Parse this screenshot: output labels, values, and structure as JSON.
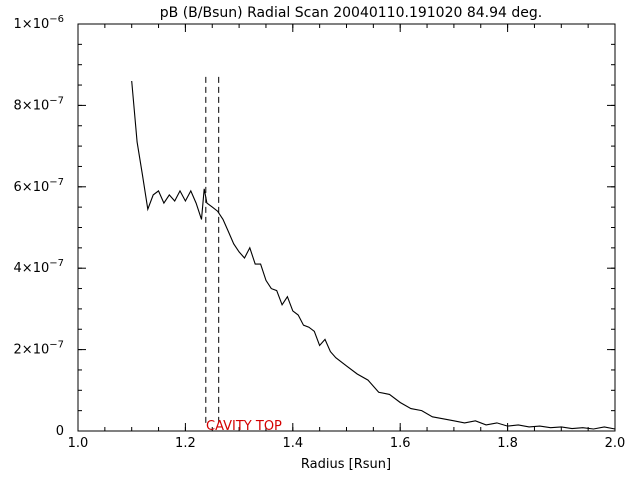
{
  "chart_data": {
    "type": "line",
    "title": "pB (B/Bsun) Radial Scan 20040110.191020 84.94 deg.",
    "xlabel": "Radius [Rsun]",
    "ylabel": "",
    "xlim": [
      1.0,
      2.0
    ],
    "ylim": [
      0,
      1e-06
    ],
    "x_ticks": [
      1.0,
      1.2,
      1.4,
      1.6,
      1.8,
      2.0
    ],
    "x_tick_labels": [
      "1.0",
      "1.2",
      "1.4",
      "1.6",
      "1.8",
      "2.0"
    ],
    "y_ticks": [
      0,
      2e-07,
      4e-07,
      6e-07,
      8e-07,
      1e-06
    ],
    "y_tick_labels": [
      {
        "mant": "0",
        "exp": ""
      },
      {
        "mant": "2×10",
        "exp": "−7"
      },
      {
        "mant": "4×10",
        "exp": "−7"
      },
      {
        "mant": "6×10",
        "exp": "−7"
      },
      {
        "mant": "8×10",
        "exp": "−7"
      },
      {
        "mant": "1×10",
        "exp": "−6"
      }
    ],
    "series": [
      {
        "x": [
          1.1,
          1.11,
          1.12,
          1.13,
          1.14,
          1.15,
          1.16,
          1.17,
          1.18,
          1.19,
          1.2,
          1.21,
          1.22,
          1.23,
          1.235,
          1.24,
          1.25,
          1.26,
          1.27,
          1.28,
          1.29,
          1.3,
          1.31,
          1.32,
          1.33,
          1.34,
          1.35,
          1.36,
          1.37,
          1.38,
          1.39,
          1.4,
          1.41,
          1.42,
          1.43,
          1.44,
          1.45,
          1.46,
          1.47,
          1.48,
          1.5,
          1.52,
          1.54,
          1.56,
          1.58,
          1.6,
          1.62,
          1.64,
          1.66,
          1.68,
          1.7,
          1.72,
          1.74,
          1.76,
          1.78,
          1.8,
          1.82,
          1.84,
          1.86,
          1.88,
          1.9,
          1.92,
          1.94,
          1.96,
          1.98,
          2.0
        ],
        "y": [
          8.6e-07,
          7.1e-07,
          6.3e-07,
          5.45e-07,
          5.8e-07,
          5.9e-07,
          5.6e-07,
          5.8e-07,
          5.65e-07,
          5.9e-07,
          5.65e-07,
          5.9e-07,
          5.6e-07,
          5.2e-07,
          5.95e-07,
          5.6e-07,
          5.5e-07,
          5.4e-07,
          5.2e-07,
          4.9e-07,
          4.6e-07,
          4.4e-07,
          4.25e-07,
          4.5e-07,
          4.1e-07,
          4.1e-07,
          3.7e-07,
          3.5e-07,
          3.45e-07,
          3.1e-07,
          3.3e-07,
          2.95e-07,
          2.85e-07,
          2.6e-07,
          2.55e-07,
          2.45e-07,
          2.1e-07,
          2.25e-07,
          1.95e-07,
          1.8e-07,
          1.6e-07,
          1.4e-07,
          1.25e-07,
          9.5e-08,
          9e-08,
          7e-08,
          5.5e-08,
          5e-08,
          3.5e-08,
          3e-08,
          2.5e-08,
          2e-08,
          2.5e-08,
          1.5e-08,
          2e-08,
          1.2e-08,
          1.5e-08,
          1e-08,
          1.2e-08,
          8e-09,
          1e-08,
          6e-09,
          8e-09,
          5e-09,
          1e-08,
          5e-09
        ]
      }
    ],
    "markers": {
      "x": [
        1.238,
        1.262
      ],
      "y_top": 8.7e-07,
      "label": "CAVITY TOP",
      "color": "#d40000"
    }
  }
}
